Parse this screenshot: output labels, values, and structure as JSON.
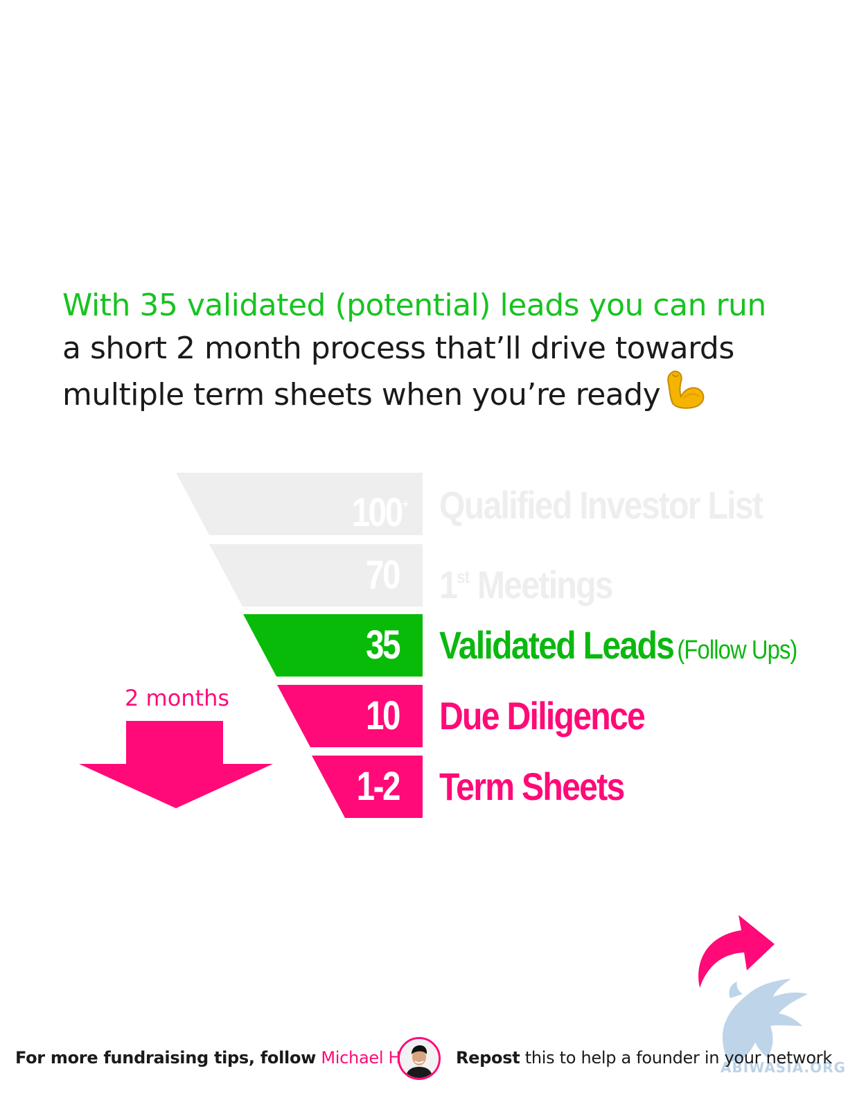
{
  "heading": {
    "line1": "With 35 validated (potential) leads you can run",
    "line2": "a short 2 month process that’ll drive towards",
    "line3": "multiple term sheets when you’re ready"
  },
  "emoji": {
    "icon": "flexed-biceps-icon"
  },
  "funnel": {
    "stages": [
      {
        "value": "100",
        "value_suffix": "+",
        "label": "Qualified Investor List",
        "label_suffix": "",
        "label_note": "",
        "color": "#eeeeee",
        "state": "faded"
      },
      {
        "value": "70",
        "value_suffix": "",
        "label": "1",
        "label_suffix": "st",
        "label_tail": " Meetings",
        "label_note": "",
        "color": "#eeeeee",
        "state": "faded"
      },
      {
        "value": "35",
        "value_suffix": "",
        "label": "Validated Leads",
        "label_suffix": "",
        "label_note": "(Follow Ups)",
        "color": "#08bb08",
        "state": "highlight"
      },
      {
        "value": "10",
        "value_suffix": "",
        "label": "Due Diligence",
        "label_suffix": "",
        "label_note": "",
        "color": "#ff0a78",
        "state": "active"
      },
      {
        "value": "1-2",
        "value_suffix": "",
        "label": "Term Sheets",
        "label_suffix": "",
        "label_note": "",
        "color": "#ff0a78",
        "state": "active"
      }
    ]
  },
  "duration": {
    "label": "2 months",
    "icon": "down-arrow-icon",
    "color": "#ff0a78"
  },
  "footer": {
    "follow_prefix": "For more fundraising tips, follow",
    "author": "Michael Ho",
    "repost_word": "Repost",
    "repost_rest": "this to help a founder in your network",
    "avatar_icon": "avatar",
    "share_icon": "share-arrow-icon"
  },
  "watermark": {
    "text": "ABIWASIA.ORG",
    "icon": "griffin-logo-icon"
  },
  "colors": {
    "green": "#17c320",
    "pink": "#ff0a78",
    "faded": "#eeeeee"
  }
}
